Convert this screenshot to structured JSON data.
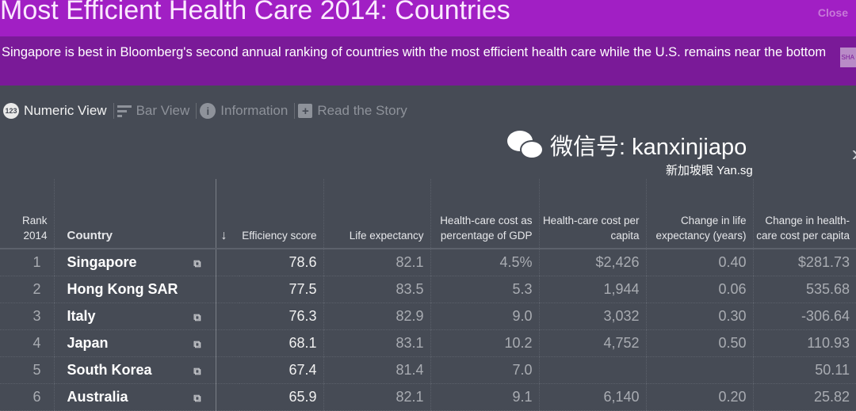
{
  "header": {
    "title": "Most Efficient Health Care 2014: Countries",
    "close_label": "Close",
    "share_label": "SHA"
  },
  "subtitle": "Singapore is best in Bloomberg's second annual ranking of countries with the most efficient health care while the U.S. remains near the bottom",
  "tabs": [
    {
      "label": "Numeric View",
      "icon": "123"
    },
    {
      "label": "Bar View"
    },
    {
      "label": "Information",
      "icon": "i"
    },
    {
      "label": "Read the Story",
      "icon": "+"
    }
  ],
  "table": {
    "headers": {
      "rank": "Rank 2014",
      "country": "Country",
      "sort": "↓",
      "efficiency": "Efficiency score",
      "life": "Life expectancy",
      "gdp": "Health-care cost as percentage of GDP",
      "cost": "Health-care cost per capita",
      "change_life": "Change in life expectancy (years)",
      "change_cost": "Change in health-care cost per capita"
    },
    "rows": [
      {
        "rank": "1",
        "country": "Singapore",
        "efficiency": "78.6",
        "life": "82.1",
        "gdp": "4.5%",
        "cost": "$2,426",
        "change_life": "0.40",
        "change_cost": "$281.73"
      },
      {
        "rank": "2",
        "country": "Hong Kong SAR",
        "efficiency": "77.5",
        "life": "83.5",
        "gdp": "5.3",
        "cost": "1,944",
        "change_life": "0.06",
        "change_cost": "535.68"
      },
      {
        "rank": "3",
        "country": "Italy",
        "efficiency": "76.3",
        "life": "82.9",
        "gdp": "9.0",
        "cost": "3,032",
        "change_life": "0.30",
        "change_cost": "-306.64"
      },
      {
        "rank": "4",
        "country": "Japan",
        "efficiency": "68.1",
        "life": "83.1",
        "gdp": "10.2",
        "cost": "4,752",
        "change_life": "0.50",
        "change_cost": "110.93"
      },
      {
        "rank": "5",
        "country": "South Korea",
        "efficiency": "67.4",
        "life": "81.4",
        "gdp": "7.0",
        "cost": "",
        "change_life": "",
        "change_cost": "50.11"
      },
      {
        "rank": "6",
        "country": "Australia",
        "efficiency": "65.9",
        "life": "82.1",
        "gdp": "9.1",
        "cost": "6,140",
        "change_life": "0.20",
        "change_cost": "25.82"
      }
    ]
  },
  "watermark": {
    "main": "微信号: kanxinjiapo",
    "sub": "新加坡眼 Yan.sg"
  }
}
